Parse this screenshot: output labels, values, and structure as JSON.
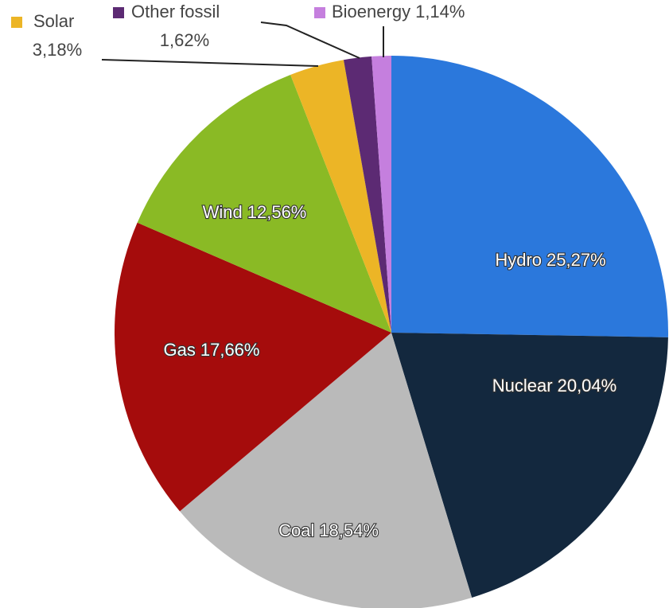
{
  "chart_data": {
    "type": "pie",
    "categories": [
      "Hydro",
      "Nuclear",
      "Coal",
      "Gas",
      "Wind",
      "Solar",
      "Other fossil",
      "Bioenergy"
    ],
    "values": [
      25.27,
      20.04,
      18.54,
      17.66,
      12.56,
      3.18,
      1.62,
      1.14
    ],
    "value_labels": [
      "25,27%",
      "20,04%",
      "18,54%",
      "17,66%",
      "12,56%",
      "3,18%",
      "1,62%",
      "1,14%"
    ],
    "colors": [
      "#2b78dc",
      "#13283e",
      "#bababa",
      "#a50c0c",
      "#8aba25",
      "#ecb526",
      "#5c2a73",
      "#c57fde"
    ]
  }
}
